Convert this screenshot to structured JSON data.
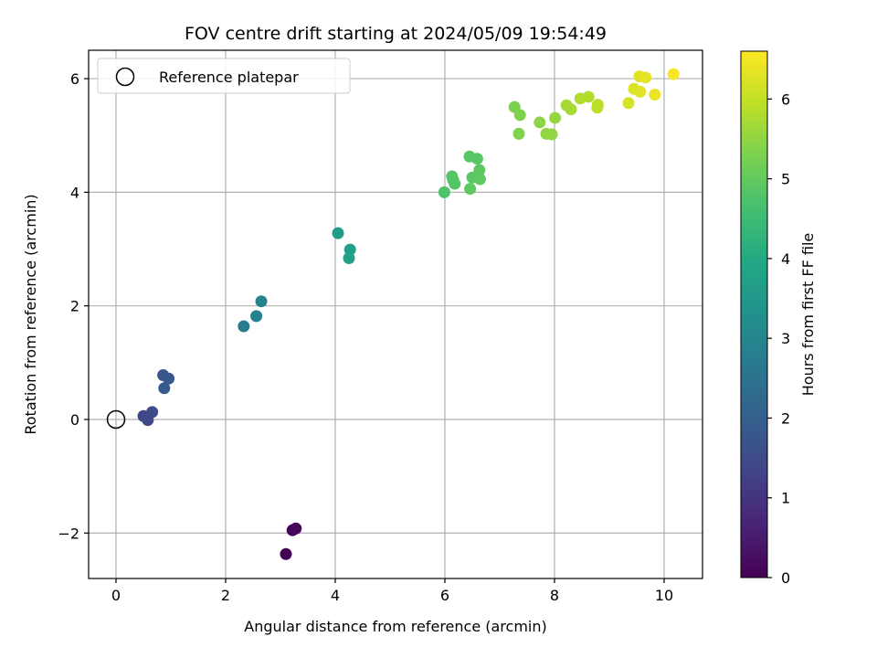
{
  "chart_data": {
    "type": "scatter",
    "title": "FOV centre drift starting at 2024/05/09 19:54:49",
    "xlabel": "Angular distance from reference (arcmin)",
    "ylabel": "Rotation from reference (arcmin)",
    "xlim": [
      -0.5,
      10.7
    ],
    "ylim": [
      -2.8,
      6.5
    ],
    "xticks": [
      0,
      2,
      4,
      6,
      8,
      10
    ],
    "xtick_labels": [
      "0",
      "2",
      "4",
      "6",
      "8",
      "10"
    ],
    "yticks": [
      -2,
      0,
      2,
      4,
      6
    ],
    "ytick_labels": [
      "−2",
      "0",
      "2",
      "4",
      "6"
    ],
    "grid": true,
    "legend": {
      "position": "top-left",
      "entries": [
        {
          "label": "Reference platepar",
          "marker": "open-circle",
          "color": "#000000"
        }
      ]
    },
    "reference_point": {
      "x": 0,
      "y": 0
    },
    "colorbar": {
      "label": "Hours from first FF file",
      "colormap": "viridis",
      "range": [
        0,
        6.6
      ],
      "ticks": [
        0,
        1,
        2,
        3,
        4,
        5,
        6
      ],
      "tick_labels": [
        "0",
        "1",
        "2",
        "3",
        "4",
        "5",
        "6"
      ]
    },
    "points": [
      {
        "x": 3.1,
        "y": -2.37,
        "h": 0.02
      },
      {
        "x": 3.22,
        "y": -1.95,
        "h": 0.08
      },
      {
        "x": 3.28,
        "y": -1.92,
        "h": 0.12
      },
      {
        "x": 0.55,
        "y": 0.04,
        "h": 1.35
      },
      {
        "x": 0.5,
        "y": 0.06,
        "h": 1.4
      },
      {
        "x": 0.58,
        "y": -0.01,
        "h": 1.45
      },
      {
        "x": 0.66,
        "y": 0.13,
        "h": 1.5
      },
      {
        "x": 0.86,
        "y": 0.78,
        "h": 1.75
      },
      {
        "x": 0.96,
        "y": 0.72,
        "h": 1.8
      },
      {
        "x": 0.88,
        "y": 0.55,
        "h": 1.85
      },
      {
        "x": 2.33,
        "y": 1.64,
        "h": 2.75
      },
      {
        "x": 2.56,
        "y": 1.82,
        "h": 2.85
      },
      {
        "x": 2.65,
        "y": 2.08,
        "h": 2.95
      },
      {
        "x": 4.05,
        "y": 3.28,
        "h": 3.65
      },
      {
        "x": 4.27,
        "y": 2.99,
        "h": 3.7
      },
      {
        "x": 4.25,
        "y": 2.84,
        "h": 3.75
      },
      {
        "x": 5.99,
        "y": 4.0,
        "h": 4.75
      },
      {
        "x": 6.13,
        "y": 4.28,
        "h": 4.8
      },
      {
        "x": 6.18,
        "y": 4.15,
        "h": 4.82
      },
      {
        "x": 6.15,
        "y": 4.22,
        "h": 4.84
      },
      {
        "x": 6.45,
        "y": 4.63,
        "h": 4.86
      },
      {
        "x": 6.59,
        "y": 4.59,
        "h": 4.88
      },
      {
        "x": 6.5,
        "y": 4.26,
        "h": 4.9
      },
      {
        "x": 6.63,
        "y": 4.39,
        "h": 4.92
      },
      {
        "x": 6.64,
        "y": 4.23,
        "h": 4.94
      },
      {
        "x": 6.46,
        "y": 4.06,
        "h": 4.96
      },
      {
        "x": 7.27,
        "y": 5.5,
        "h": 5.3
      },
      {
        "x": 7.37,
        "y": 5.36,
        "h": 5.32
      },
      {
        "x": 7.35,
        "y": 5.03,
        "h": 5.34
      },
      {
        "x": 7.73,
        "y": 5.23,
        "h": 5.45
      },
      {
        "x": 7.85,
        "y": 5.03,
        "h": 5.5
      },
      {
        "x": 7.95,
        "y": 5.02,
        "h": 5.52
      },
      {
        "x": 8.01,
        "y": 5.31,
        "h": 5.55
      },
      {
        "x": 8.22,
        "y": 5.53,
        "h": 5.7
      },
      {
        "x": 8.3,
        "y": 5.46,
        "h": 5.72
      },
      {
        "x": 8.47,
        "y": 5.65,
        "h": 5.8
      },
      {
        "x": 8.62,
        "y": 5.68,
        "h": 5.82
      },
      {
        "x": 8.79,
        "y": 5.54,
        "h": 5.9
      },
      {
        "x": 8.78,
        "y": 5.49,
        "h": 5.92
      },
      {
        "x": 9.35,
        "y": 5.57,
        "h": 6.2
      },
      {
        "x": 9.45,
        "y": 5.82,
        "h": 6.25
      },
      {
        "x": 9.56,
        "y": 5.77,
        "h": 6.28
      },
      {
        "x": 9.55,
        "y": 6.04,
        "h": 6.3
      },
      {
        "x": 9.66,
        "y": 6.02,
        "h": 6.35
      },
      {
        "x": 9.83,
        "y": 5.72,
        "h": 6.42
      },
      {
        "x": 10.17,
        "y": 6.08,
        "h": 6.55
      }
    ]
  }
}
